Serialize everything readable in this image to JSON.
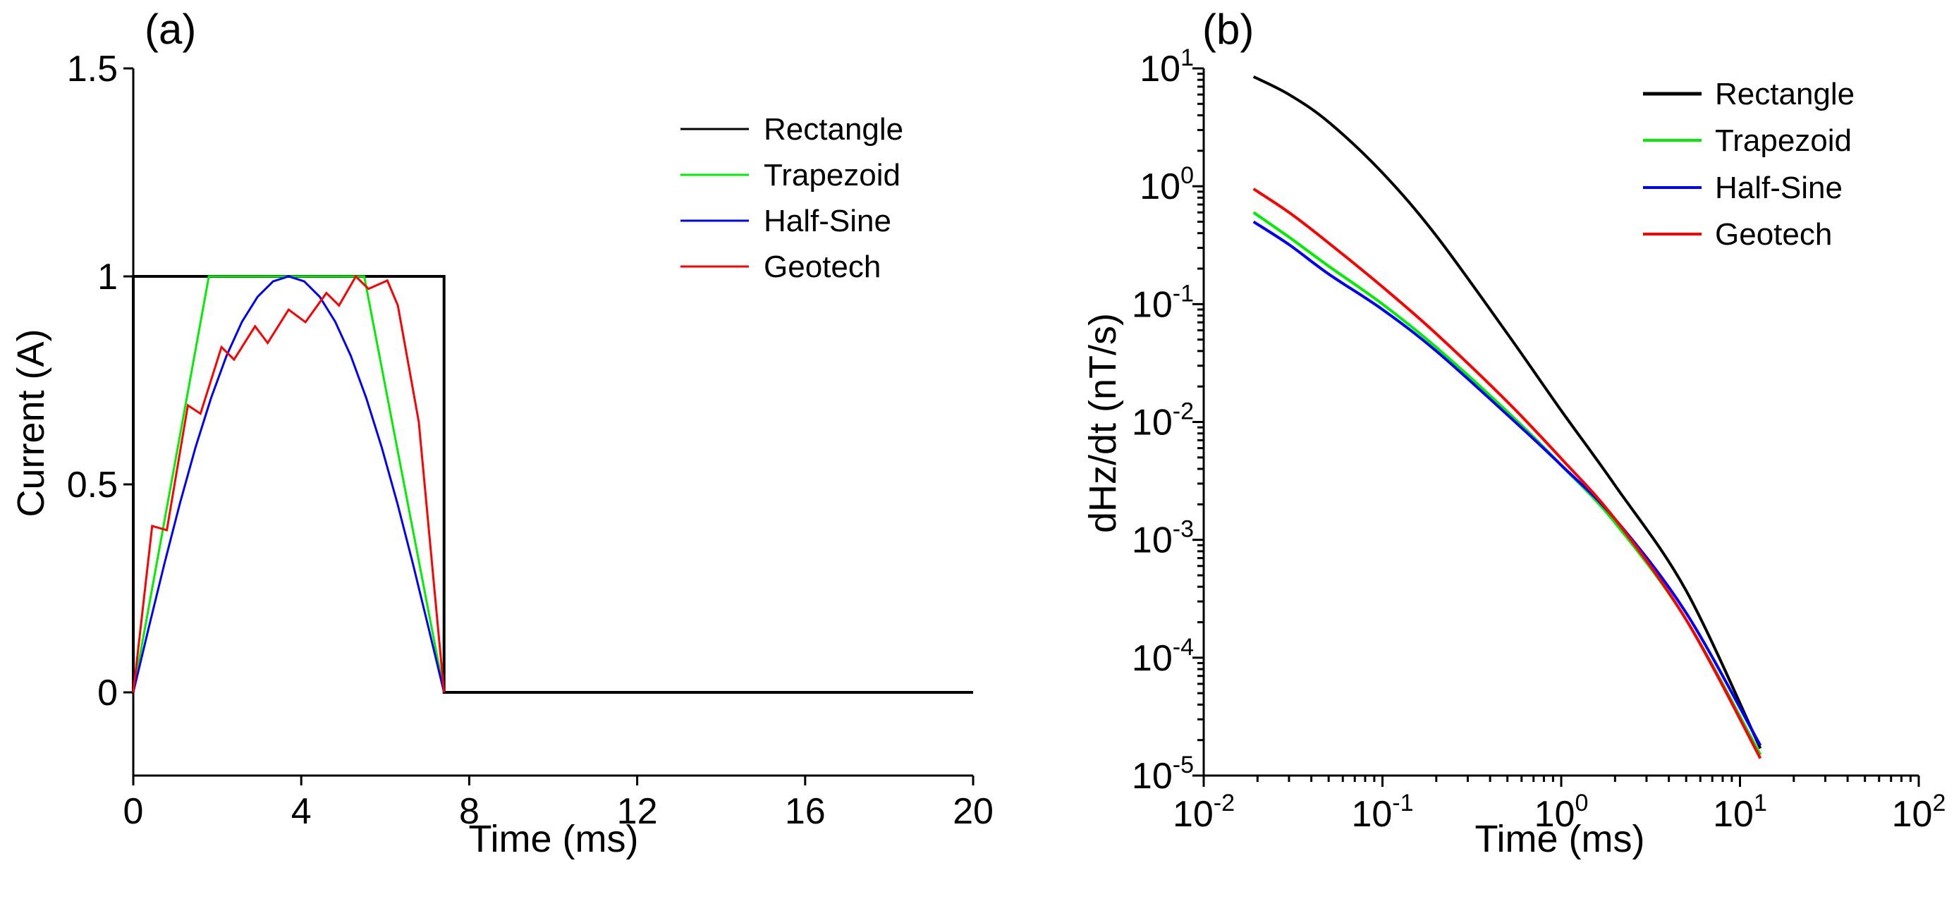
{
  "chart_data": [
    {
      "type": "line",
      "panel_label": "(a)",
      "xlabel": "Time (ms)",
      "ylabel": "Current (A)",
      "xlim": [
        0,
        20
      ],
      "ylim": [
        -0.2,
        1.5
      ],
      "x_ticks": [
        0,
        4,
        8,
        12,
        16,
        20
      ],
      "y_ticks": [
        0,
        0.5,
        1,
        1.5
      ],
      "x_tick_labels": [
        "0",
        "4",
        "8",
        "12",
        "16",
        "20"
      ],
      "y_tick_labels": [
        "0",
        "0.5",
        "1",
        "1.5"
      ],
      "legend_position": "top-right",
      "series": [
        {
          "name": "Rectangle",
          "color": "#000000",
          "x": [
            0,
            0,
            7.4,
            7.4,
            20
          ],
          "y": [
            0,
            1,
            1,
            0,
            0
          ]
        },
        {
          "name": "Trapezoid",
          "color": "#00ee00",
          "x": [
            0,
            1.8,
            1.9,
            5.5,
            7.4
          ],
          "y": [
            0,
            1,
            1,
            1,
            0
          ]
        },
        {
          "name": "Half-Sine",
          "color": "#0000ff",
          "x": [
            0,
            0.37,
            0.74,
            1.11,
            1.48,
            1.85,
            2.22,
            2.59,
            2.96,
            3.33,
            3.7,
            4.07,
            4.44,
            4.81,
            5.18,
            5.55,
            5.92,
            6.29,
            6.66,
            7.03,
            7.4
          ],
          "y": [
            0,
            0.156,
            0.309,
            0.454,
            0.588,
            0.707,
            0.809,
            0.891,
            0.951,
            0.988,
            1,
            0.988,
            0.951,
            0.891,
            0.809,
            0.707,
            0.588,
            0.454,
            0.309,
            0.156,
            0
          ]
        },
        {
          "name": "Geotech",
          "color": "#ff0000",
          "x": [
            0,
            0.45,
            0.8,
            1.3,
            1.6,
            2.1,
            2.4,
            2.9,
            3.2,
            3.7,
            4.1,
            4.6,
            4.9,
            5.3,
            5.6,
            6.05,
            6.3,
            6.8,
            7.4
          ],
          "y": [
            0,
            0.4,
            0.39,
            0.69,
            0.67,
            0.83,
            0.8,
            0.88,
            0.84,
            0.92,
            0.89,
            0.96,
            0.93,
            1.0,
            0.97,
            0.99,
            0.93,
            0.65,
            0
          ]
        }
      ]
    },
    {
      "type": "line",
      "panel_label": "(b)",
      "xlabel": "Time (ms)",
      "ylabel": "dHz/dt (nT/s)",
      "xscale": "log",
      "yscale": "log",
      "xlim": [
        0.01,
        100
      ],
      "ylim": [
        1e-05,
        10
      ],
      "x_tick_labels": [
        {
          "base": "10",
          "exp": "-2"
        },
        {
          "base": "10",
          "exp": "-1"
        },
        {
          "base": "10",
          "exp": "0"
        },
        {
          "base": "10",
          "exp": "1"
        },
        {
          "base": "10",
          "exp": "2"
        }
      ],
      "y_tick_labels": [
        {
          "base": "10",
          "exp": "1"
        },
        {
          "base": "10",
          "exp": "0"
        },
        {
          "base": "10",
          "exp": "-1"
        },
        {
          "base": "10",
          "exp": "-2"
        },
        {
          "base": "10",
          "exp": "-3"
        },
        {
          "base": "10",
          "exp": "-4"
        },
        {
          "base": "10",
          "exp": "-5"
        }
      ],
      "legend_position": "top-right",
      "series": [
        {
          "name": "Rectangle",
          "color": "#000000",
          "x": [
            0.019,
            0.03,
            0.05,
            0.1,
            0.2,
            0.5,
            1,
            2,
            5,
            13
          ],
          "y": [
            8.5,
            6.0,
            3.5,
            1.3,
            0.38,
            0.056,
            0.0125,
            0.0029,
            0.00037,
            1.7e-05
          ]
        },
        {
          "name": "Trapezoid",
          "color": "#00ee00",
          "x": [
            0.019,
            0.03,
            0.05,
            0.1,
            0.2,
            0.5,
            1,
            2,
            5,
            13
          ],
          "y": [
            0.6,
            0.37,
            0.21,
            0.1,
            0.043,
            0.0122,
            0.0043,
            0.0014,
            0.00021,
            1.5e-05
          ]
        },
        {
          "name": "Half-Sine",
          "color": "#0000ff",
          "x": [
            0.019,
            0.03,
            0.05,
            0.1,
            0.2,
            0.5,
            1,
            2,
            5,
            13
          ],
          "y": [
            0.5,
            0.32,
            0.18,
            0.09,
            0.04,
            0.0115,
            0.0043,
            0.0015,
            0.00024,
            1.8e-05
          ]
        },
        {
          "name": "Geotech",
          "color": "#ff0000",
          "x": [
            0.019,
            0.03,
            0.05,
            0.1,
            0.2,
            0.5,
            1,
            2,
            5,
            13
          ],
          "y": [
            0.95,
            0.6,
            0.33,
            0.14,
            0.056,
            0.0148,
            0.0049,
            0.0015,
            0.00021,
            1.4e-05
          ]
        }
      ]
    }
  ]
}
